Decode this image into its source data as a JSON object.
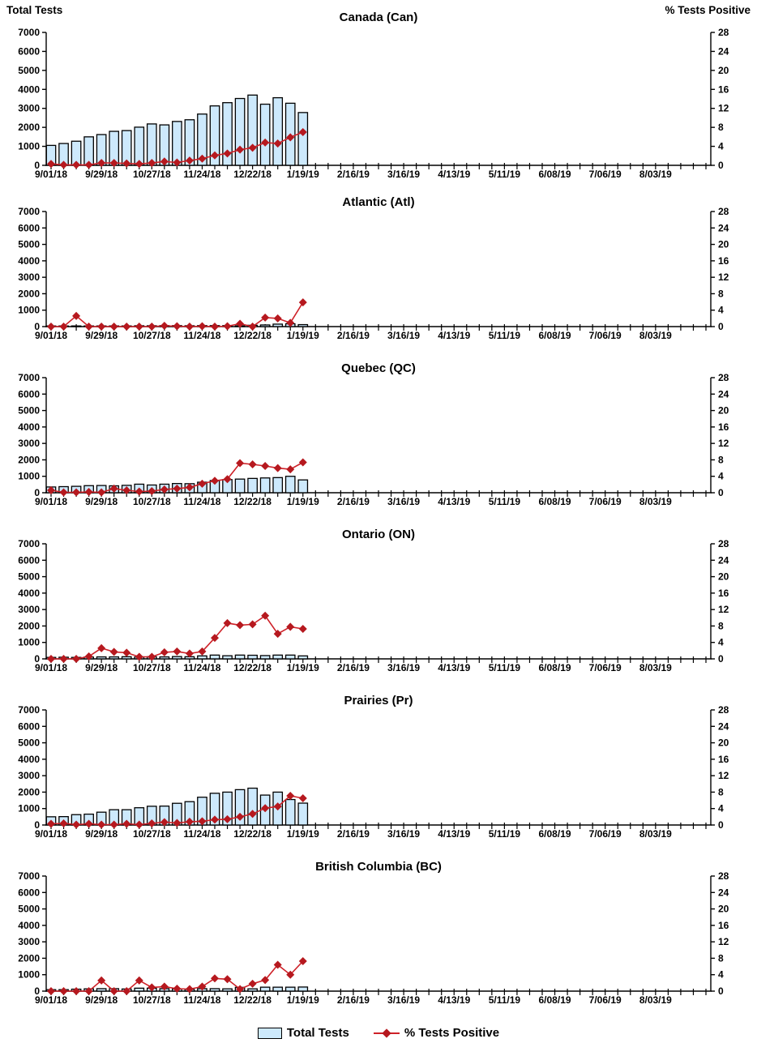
{
  "axes": {
    "left_label": "Total Tests",
    "right_label": "% Tests Positive",
    "left_ticks": [
      "0",
      "1000",
      "2000",
      "3000",
      "4000",
      "5000",
      "6000",
      "7000"
    ],
    "left_max": 7000,
    "right_ticks": [
      "0",
      "4",
      "8",
      "12",
      "16",
      "20",
      "24",
      "28"
    ],
    "right_max": 28,
    "x_labels": [
      "9/01/18",
      "9/29/18",
      "10/27/18",
      "11/24/18",
      "12/22/18",
      "1/19/19",
      "2/16/19",
      "3/16/19",
      "4/13/19",
      "5/11/19",
      "6/08/19",
      "7/06/19",
      "8/03/19"
    ],
    "x_total_slots": 53,
    "x_label_every": 4
  },
  "colors": {
    "bar_fill": "#CDE9FC",
    "bar_border": "#000000",
    "line": "#CE2128",
    "marker": "#B6191F",
    "axis": "#000000",
    "text": "#000000"
  },
  "legend": {
    "items": [
      {
        "label": "Total Tests",
        "type": "bar"
      },
      {
        "label": "% Tests Positive",
        "type": "line"
      }
    ]
  },
  "chart_data": [
    {
      "type": "bar+line",
      "title": "Canada (Can)",
      "categories": [
        "9/01/18",
        "9/08/18",
        "9/15/18",
        "9/22/18",
        "9/29/18",
        "10/06/18",
        "10/13/18",
        "10/20/18",
        "10/27/18",
        "11/03/18",
        "11/10/18",
        "11/17/18",
        "11/24/18",
        "12/01/18",
        "12/08/18",
        "12/15/18",
        "12/22/18",
        "12/29/18",
        "1/05/19",
        "1/12/19",
        "1/19/19"
      ],
      "series": [
        {
          "name": "Total Tests",
          "axis": "left",
          "ylim": [
            0,
            7000
          ],
          "values": [
            1050,
            1150,
            1270,
            1500,
            1620,
            1790,
            1830,
            2010,
            2180,
            2130,
            2310,
            2400,
            2700,
            3130,
            3300,
            3520,
            3700,
            3220,
            3560,
            3270,
            2780
          ]
        },
        {
          "name": "% Tests Positive",
          "axis": "right",
          "ylim": [
            0,
            28
          ],
          "values": [
            0.3,
            0.1,
            0.1,
            0.1,
            0.5,
            0.5,
            0.4,
            0.3,
            0.5,
            0.8,
            0.6,
            1.0,
            1.4,
            2.1,
            2.5,
            3.3,
            3.7,
            4.8,
            4.6,
            5.9,
            7.0
          ]
        }
      ]
    },
    {
      "type": "bar+line",
      "title": "Atlantic (Atl)",
      "categories": [
        "9/01/18",
        "9/08/18",
        "9/15/18",
        "9/22/18",
        "9/29/18",
        "10/06/18",
        "10/13/18",
        "10/20/18",
        "10/27/18",
        "11/03/18",
        "11/10/18",
        "11/17/18",
        "11/24/18",
        "12/01/18",
        "12/08/18",
        "12/15/18",
        "12/22/18",
        "12/29/18",
        "1/05/19",
        "1/12/19",
        "1/19/19"
      ],
      "series": [
        {
          "name": "Total Tests",
          "axis": "left",
          "ylim": [
            0,
            7000
          ],
          "values": [
            30,
            30,
            40,
            40,
            40,
            40,
            40,
            50,
            50,
            60,
            60,
            50,
            60,
            60,
            60,
            50,
            80,
            100,
            150,
            170,
            120
          ]
        },
        {
          "name": "% Tests Positive",
          "axis": "right",
          "ylim": [
            0,
            28
          ],
          "values": [
            0,
            0,
            2.6,
            0,
            0,
            0,
            0,
            0,
            0,
            0.2,
            0.1,
            0,
            0.1,
            0,
            0.1,
            0.7,
            0,
            2.2,
            2.0,
            0.9,
            5.9
          ]
        }
      ]
    },
    {
      "type": "bar+line",
      "title": "Quebec (QC)",
      "categories": [
        "9/01/18",
        "9/08/18",
        "9/15/18",
        "9/22/18",
        "9/29/18",
        "10/06/18",
        "10/13/18",
        "10/20/18",
        "10/27/18",
        "11/03/18",
        "11/10/18",
        "11/17/18",
        "11/24/18",
        "12/01/18",
        "12/08/18",
        "12/15/18",
        "12/22/18",
        "12/29/18",
        "1/05/19",
        "1/12/19",
        "1/19/19"
      ],
      "series": [
        {
          "name": "Total Tests",
          "axis": "left",
          "ylim": [
            0,
            7000
          ],
          "values": [
            350,
            370,
            390,
            430,
            440,
            420,
            450,
            520,
            470,
            520,
            560,
            550,
            640,
            740,
            800,
            830,
            870,
            900,
            920,
            1000,
            780
          ]
        },
        {
          "name": "% Tests Positive",
          "axis": "right",
          "ylim": [
            0,
            28
          ],
          "values": [
            0.6,
            0.1,
            0.1,
            0.2,
            0.1,
            1.0,
            0.6,
            0.3,
            0.4,
            0.8,
            1.0,
            1.3,
            2.2,
            2.9,
            3.3,
            7.2,
            6.9,
            6.5,
            6.0,
            5.7,
            7.4
          ]
        }
      ]
    },
    {
      "type": "bar+line",
      "title": "Ontario (ON)",
      "categories": [
        "9/01/18",
        "9/08/18",
        "9/15/18",
        "9/22/18",
        "9/29/18",
        "10/06/18",
        "10/13/18",
        "10/20/18",
        "10/27/18",
        "11/03/18",
        "11/10/18",
        "11/17/18",
        "11/24/18",
        "12/01/18",
        "12/08/18",
        "12/15/18",
        "12/22/18",
        "12/29/18",
        "1/05/19",
        "1/12/19",
        "1/19/19"
      ],
      "series": [
        {
          "name": "Total Tests",
          "axis": "left",
          "ylim": [
            0,
            7000
          ],
          "values": [
            90,
            100,
            90,
            110,
            120,
            120,
            130,
            120,
            130,
            120,
            140,
            130,
            180,
            230,
            190,
            230,
            220,
            200,
            230,
            230,
            180
          ]
        },
        {
          "name": "% Tests Positive",
          "axis": "right",
          "ylim": [
            0,
            28
          ],
          "values": [
            0,
            0,
            0,
            0.6,
            2.6,
            1.7,
            1.5,
            0.5,
            0.5,
            1.6,
            1.8,
            1.3,
            1.8,
            5.1,
            8.7,
            8.2,
            8.4,
            10.5,
            6.1,
            7.8,
            7.3
          ]
        }
      ]
    },
    {
      "type": "bar+line",
      "title": "Prairies (Pr)",
      "categories": [
        "9/01/18",
        "9/08/18",
        "9/15/18",
        "9/22/18",
        "9/29/18",
        "10/06/18",
        "10/13/18",
        "10/20/18",
        "10/27/18",
        "11/03/18",
        "11/10/18",
        "11/17/18",
        "11/24/18",
        "12/01/18",
        "12/08/18",
        "12/15/18",
        "12/22/18",
        "12/29/18",
        "1/05/19",
        "1/12/19",
        "1/19/19"
      ],
      "series": [
        {
          "name": "Total Tests",
          "axis": "left",
          "ylim": [
            0,
            7000
          ],
          "values": [
            500,
            510,
            630,
            660,
            780,
            930,
            930,
            1050,
            1140,
            1150,
            1320,
            1420,
            1690,
            1930,
            2000,
            2150,
            2240,
            1820,
            2000,
            1550,
            1330
          ]
        },
        {
          "name": "% Tests Positive",
          "axis": "right",
          "ylim": [
            0,
            28
          ],
          "values": [
            0.3,
            0.4,
            0.1,
            0.3,
            0.1,
            0.1,
            0.3,
            0.1,
            0.4,
            0.7,
            0.5,
            0.8,
            0.9,
            1.3,
            1.4,
            2.0,
            2.7,
            4.1,
            4.5,
            7.1,
            6.5
          ]
        }
      ]
    },
    {
      "type": "bar+line",
      "title": "British Columbia (BC)",
      "categories": [
        "9/01/18",
        "9/08/18",
        "9/15/18",
        "9/22/18",
        "9/29/18",
        "10/06/18",
        "10/13/18",
        "10/20/18",
        "10/27/18",
        "11/03/18",
        "11/10/18",
        "11/17/18",
        "11/24/18",
        "12/01/18",
        "12/08/18",
        "12/15/18",
        "12/22/18",
        "12/29/18",
        "1/05/19",
        "1/12/19",
        "1/19/19"
      ],
      "series": [
        {
          "name": "Total Tests",
          "axis": "left",
          "ylim": [
            0,
            7000
          ],
          "values": [
            90,
            90,
            120,
            140,
            150,
            150,
            130,
            180,
            180,
            150,
            140,
            110,
            150,
            150,
            140,
            230,
            140,
            240,
            240,
            240,
            250
          ]
        },
        {
          "name": "% Tests Positive",
          "axis": "right",
          "ylim": [
            0,
            28
          ],
          "values": [
            0,
            0,
            0,
            0,
            2.6,
            0,
            0,
            2.6,
            0.9,
            1.1,
            0.6,
            0.5,
            1.1,
            3.1,
            2.9,
            0.5,
            1.8,
            2.7,
            6.4,
            4.0,
            7.3
          ]
        }
      ]
    }
  ]
}
